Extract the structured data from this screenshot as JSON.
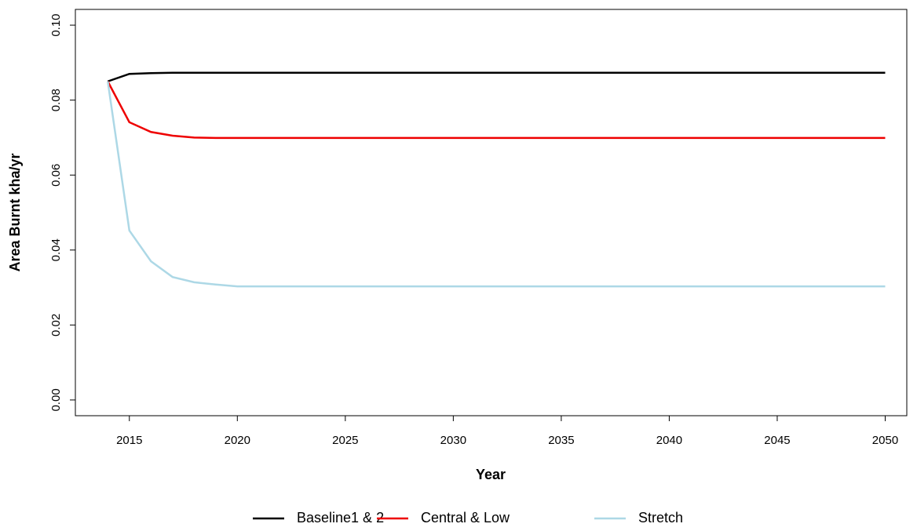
{
  "chart_data": {
    "type": "line",
    "x_label": "Year",
    "y_label": "Area Burnt kha/yr",
    "x": [
      2014,
      2015,
      2016,
      2017,
      2018,
      2019,
      2020,
      2021,
      2022,
      2023,
      2024,
      2025,
      2026,
      2027,
      2028,
      2029,
      2030,
      2031,
      2032,
      2033,
      2034,
      2035,
      2036,
      2037,
      2038,
      2039,
      2040,
      2041,
      2042,
      2043,
      2044,
      2045,
      2046,
      2047,
      2048,
      2049,
      2050
    ],
    "series": [
      {
        "name": "Baseline1 & 2",
        "color": "#000000",
        "values": [
          0.085,
          0.087,
          0.0872,
          0.0873,
          0.0873,
          0.0873,
          0.0873,
          0.0873,
          0.0873,
          0.0873,
          0.0873,
          0.0873,
          0.0873,
          0.0873,
          0.0873,
          0.0873,
          0.0873,
          0.0873,
          0.0873,
          0.0873,
          0.0873,
          0.0873,
          0.0873,
          0.0873,
          0.0873,
          0.0873,
          0.0873,
          0.0873,
          0.0873,
          0.0873,
          0.0873,
          0.0873,
          0.0873,
          0.0873,
          0.0873,
          0.0873,
          0.0873
        ]
      },
      {
        "name": "Central & Low",
        "color": "#ee0000",
        "values": [
          0.085,
          0.0741,
          0.0715,
          0.0705,
          0.07,
          0.0699,
          0.0699,
          0.0699,
          0.0699,
          0.0699,
          0.0699,
          0.0699,
          0.0699,
          0.0699,
          0.0699,
          0.0699,
          0.0699,
          0.0699,
          0.0699,
          0.0699,
          0.0699,
          0.0699,
          0.0699,
          0.0699,
          0.0699,
          0.0699,
          0.0699,
          0.0699,
          0.0699,
          0.0699,
          0.0699,
          0.0699,
          0.0699,
          0.0699,
          0.0699,
          0.0699,
          0.0699
        ]
      },
      {
        "name": "Stretch",
        "color": "#add8e6",
        "values": [
          0.085,
          0.0452,
          0.037,
          0.0328,
          0.0314,
          0.0308,
          0.0303,
          0.0303,
          0.0303,
          0.0303,
          0.0303,
          0.0303,
          0.0303,
          0.0303,
          0.0303,
          0.0303,
          0.0303,
          0.0303,
          0.0303,
          0.0303,
          0.0303,
          0.0303,
          0.0303,
          0.0303,
          0.0303,
          0.0303,
          0.0303,
          0.0303,
          0.0303,
          0.0303,
          0.0303,
          0.0303,
          0.0303,
          0.0303,
          0.0303,
          0.0303,
          0.0303
        ]
      }
    ],
    "xlim": [
      2012.5,
      2051.0
    ],
    "xticks": [
      2015,
      2020,
      2025,
      2030,
      2035,
      2040,
      2045,
      2050
    ],
    "ylim": [
      -0.0042,
      0.1042
    ],
    "yticks": [
      {
        "value": 0,
        "label": "0.00"
      },
      0.02,
      0.04,
      0.06,
      0.08,
      {
        "value": 0.1,
        "label": "0.10"
      }
    ],
    "legend": "bottom"
  }
}
